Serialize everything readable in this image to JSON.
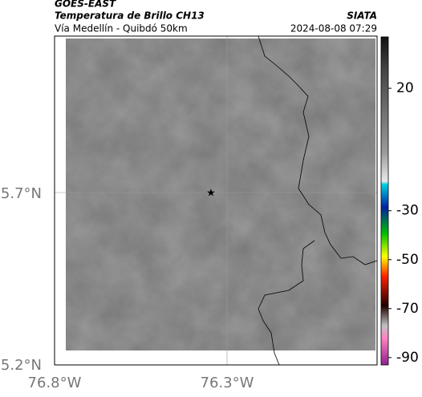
{
  "header": {
    "title": "GOES-EAST",
    "subtitle": "Temperatura de Brillo CH13",
    "location": "Vía Medellín - Quibdó 50km",
    "source": "SIATA",
    "datetime": "2024-08-08 07:29"
  },
  "axes": {
    "y_labels": [
      "5.7°N",
      "5.2°N"
    ],
    "x_labels": [
      "76.8°W",
      "76.3°W"
    ]
  },
  "colorbar": {
    "lim": [
      41,
      -93
    ],
    "ticks": [
      20,
      -30,
      -50,
      -70,
      -90
    ]
  }
}
